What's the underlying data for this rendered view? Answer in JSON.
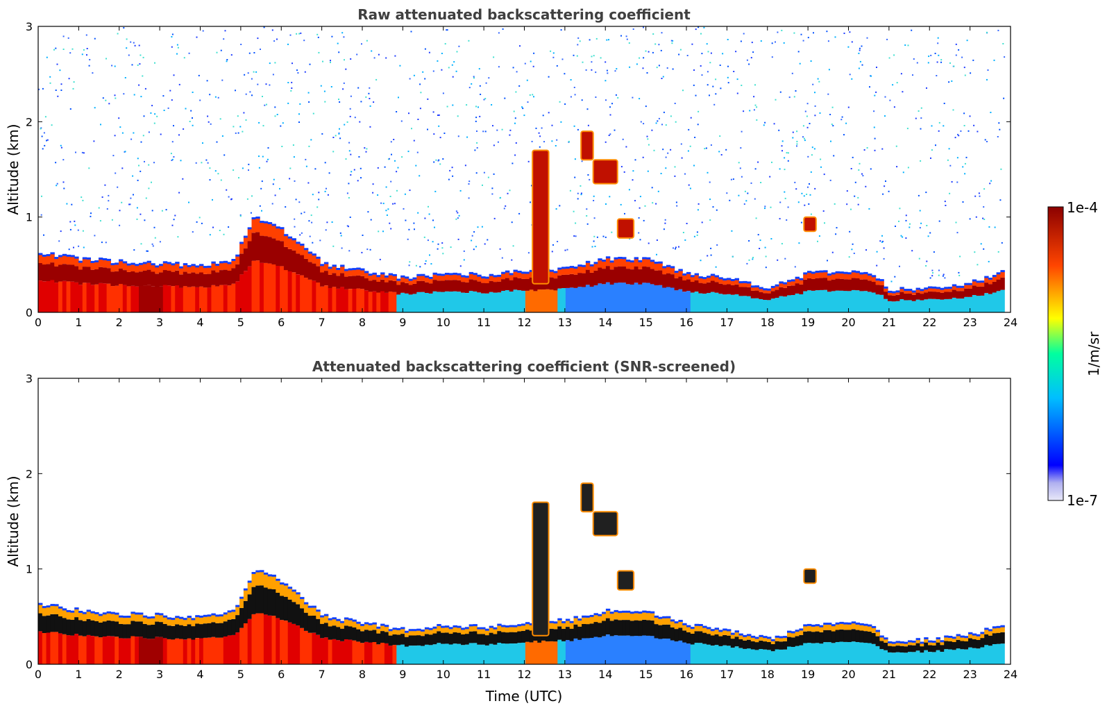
{
  "chart_data": [
    {
      "type": "heatmap",
      "title": "Raw attenuated backscattering coefficient",
      "xlabel": "",
      "ylabel": "Altitude (km)",
      "xlim": [
        0,
        24
      ],
      "ylim": [
        0,
        3
      ],
      "xticks": [
        "0",
        "1",
        "2",
        "3",
        "4",
        "5",
        "6",
        "7",
        "8",
        "9",
        "10",
        "11",
        "12",
        "13",
        "14",
        "15",
        "16",
        "17",
        "18",
        "19",
        "20",
        "21",
        "22",
        "23",
        "24"
      ],
      "yticks": [
        "0",
        "1",
        "2",
        "3"
      ],
      "boundary_layer_top_km": [
        [
          0,
          0.62
        ],
        [
          1,
          0.55
        ],
        [
          2,
          0.52
        ],
        [
          3,
          0.5
        ],
        [
          4,
          0.48
        ],
        [
          4.8,
          0.55
        ],
        [
          5.3,
          1.0
        ],
        [
          6.0,
          0.85
        ],
        [
          7.0,
          0.5
        ],
        [
          8.0,
          0.42
        ],
        [
          9.0,
          0.35
        ],
        [
          10.0,
          0.4
        ],
        [
          11.0,
          0.38
        ],
        [
          12.0,
          0.42
        ],
        [
          13.0,
          0.45
        ],
        [
          14.0,
          0.55
        ],
        [
          15.0,
          0.55
        ],
        [
          16.0,
          0.4
        ],
        [
          17.0,
          0.35
        ],
        [
          18.0,
          0.25
        ],
        [
          19.0,
          0.4
        ],
        [
          20.0,
          0.42
        ],
        [
          20.6,
          0.38
        ],
        [
          21.0,
          0.22
        ],
        [
          22.0,
          0.25
        ],
        [
          23.0,
          0.3
        ],
        [
          23.8,
          0.42
        ]
      ],
      "elevated_features": [
        {
          "t0": 12.2,
          "t1": 12.6,
          "z0": 0.3,
          "z1": 1.7
        },
        {
          "t0": 13.4,
          "t1": 13.7,
          "z0": 1.6,
          "z1": 1.9
        },
        {
          "t0": 13.7,
          "t1": 14.3,
          "z0": 1.35,
          "z1": 1.6
        },
        {
          "t0": 14.3,
          "t1": 14.7,
          "z0": 0.78,
          "z1": 0.98
        },
        {
          "t0": 18.9,
          "t1": 19.2,
          "z0": 0.85,
          "z1": 1.0
        }
      ]
    },
    {
      "type": "heatmap",
      "title": "Attenuated backscattering coefficient (SNR-screened)",
      "xlabel": "Time (UTC)",
      "ylabel": "Altitude (km)",
      "xlim": [
        0,
        24
      ],
      "ylim": [
        0,
        3
      ],
      "xticks": [
        "0",
        "1",
        "2",
        "3",
        "4",
        "5",
        "6",
        "7",
        "8",
        "9",
        "10",
        "11",
        "12",
        "13",
        "14",
        "15",
        "16",
        "17",
        "18",
        "19",
        "20",
        "21",
        "22",
        "23",
        "24"
      ],
      "yticks": [
        "0",
        "1",
        "2",
        "3"
      ]
    }
  ],
  "colorbar": {
    "label": "1/m/sr",
    "max_label": "1e-4",
    "min_label": "1e-7",
    "colormap": "jet",
    "colors": [
      "#e8e8f8",
      "#0000ff",
      "#00bfff",
      "#00ff7f",
      "#ffff00",
      "#ff4500",
      "#8b0000"
    ]
  }
}
